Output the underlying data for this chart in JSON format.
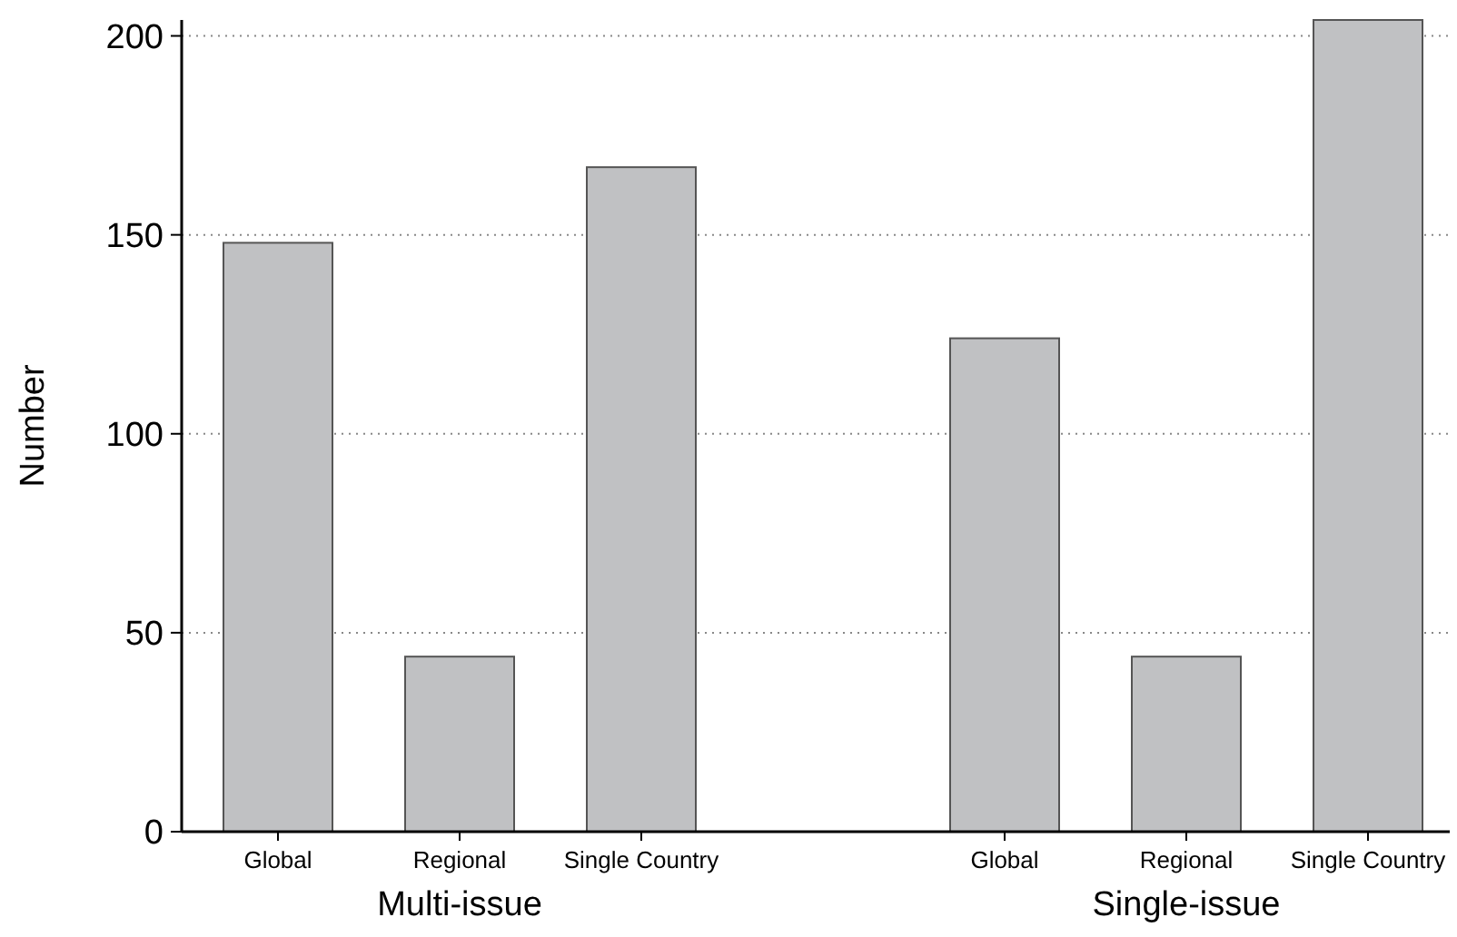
{
  "chart_data": {
    "type": "bar",
    "ylabel": "Number",
    "categories": [
      "Global",
      "Regional",
      "Single Country",
      null,
      "Global",
      "Regional",
      "Single Country"
    ],
    "values": [
      148,
      44,
      167,
      null,
      124,
      44,
      204
    ],
    "color": "#c0c1c3",
    "ylim": [
      0,
      204
    ],
    "yticks": [
      0,
      50,
      100,
      150,
      200
    ],
    "grid": "y",
    "annotations": [
      "Multi-issue",
      "Single-issue"
    ]
  }
}
